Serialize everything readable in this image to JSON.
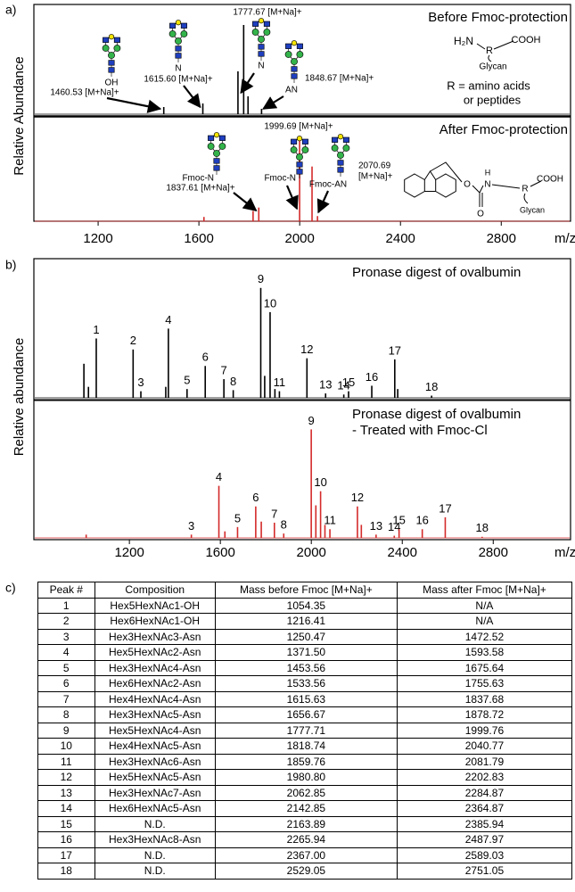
{
  "panel_a": {
    "label": "a)",
    "y_label": "Relative Abundance",
    "x_label": "m/z",
    "xlim": [
      945,
      3075
    ],
    "xticks": [
      1200,
      1600,
      2000,
      2400,
      2800
    ],
    "spectra": [
      {
        "title_lines": [
          "Before Fmoc-protection"
        ],
        "color": "#000000",
        "ylim": [
          0,
          120
        ],
        "peaks": {
          "x": [
            1460.53,
            1615.6,
            1755,
            1777.67,
            1795,
            1848.67
          ],
          "y": [
            8,
            12,
            48,
            100,
            20,
            6
          ]
        },
        "annotations": [
          {
            "label_lines": [
              "1460.53 [M+Na]+"
            ],
            "linker": "OH",
            "x": 1460.53
          },
          {
            "label_lines": [
              "1615.60 [M+Na]+"
            ],
            "linker": "N",
            "x": 1615.6
          },
          {
            "label_lines": [
              "1777.67 [M+Na]+"
            ],
            "linker": "N",
            "x": 1777.67
          },
          {
            "label_lines": [
              "1848.67 [M+Na]+"
            ],
            "linker": "AN",
            "x": 1848.67
          }
        ]
      },
      {
        "title_lines": [
          "After Fmoc-protection"
        ],
        "color": "#d42a2a",
        "ylim": [
          0,
          120
        ],
        "peaks": {
          "x": [
            1620,
            1815,
            1837.61,
            1999.69,
            2049,
            2070.69
          ],
          "y": [
            5,
            12,
            16,
            100,
            64,
            6
          ]
        },
        "annotations": [
          {
            "label_lines": [
              "1837.61 [M+Na]+"
            ],
            "linker": "Fmoc-N",
            "x": 1837.61
          },
          {
            "label_lines": [
              "1999.69 [M+Na]+"
            ],
            "linker": "Fmoc-N",
            "x": 1999.69
          },
          {
            "label_lines": [
              "2070.69",
              "[M+Na]+"
            ],
            "linker": "Fmoc-AN",
            "x": 2070.69
          }
        ]
      }
    ],
    "structure_before": [
      "H₂N",
      "R",
      "COOH",
      "Glycan"
    ],
    "r_note": [
      "R = amino acids",
      "or peptides"
    ],
    "structure_after": [
      "O",
      "H",
      "N",
      "O",
      "R",
      "COOH",
      "Glycan"
    ]
  },
  "panel_b": {
    "label": "b)",
    "y_label": "Relative abundance",
    "x_label": "m/z",
    "xlim": [
      780,
      3140
    ],
    "xticks": [
      1200,
      1600,
      2000,
      2400,
      2800
    ],
    "spectra": [
      {
        "title_lines": [
          "Pronase digest of ovalbumin"
        ],
        "color": "#000000",
        "ylim": [
          0,
          125
        ],
        "peaks": {
          "labels": [
            "1",
            "2",
            "3",
            "4",
            "5",
            "6",
            "7",
            "8",
            "9",
            "10",
            "11",
            "12",
            "13",
            "14",
            "15",
            "16",
            "17",
            "18"
          ],
          "x": [
            1054.35,
            1216.41,
            1250.47,
            1371.5,
            1453.56,
            1533.56,
            1615.63,
            1656.67,
            1777.71,
            1818.74,
            1859.76,
            1980.8,
            2062.85,
            2142.85,
            2163.89,
            2265.94,
            2367,
            2529.05
          ],
          "y": [
            54,
            44,
            6,
            63,
            8,
            29,
            17,
            7,
            100,
            78,
            6,
            36,
            4,
            3,
            6,
            11,
            35,
            2
          ]
        },
        "minor_peaks": {
          "x": [
            1000,
            1020,
            1360,
            1795,
            1840,
            2380
          ],
          "y": [
            31,
            10,
            10,
            20,
            8,
            8
          ]
        }
      },
      {
        "title_lines": [
          "Pronase digest of ovalbumin",
          "- Treated with Fmoc-Cl"
        ],
        "color": "#d42a2a",
        "ylim": [
          0,
          125
        ],
        "peaks": {
          "labels": [
            "3",
            "4",
            "5",
            "6",
            "7",
            "8",
            "9",
            "10",
            "11",
            "12",
            "13",
            "14",
            "15",
            "16",
            "17",
            "18"
          ],
          "x": [
            1472.52,
            1593.58,
            1675.64,
            1755.63,
            1837.68,
            1878.72,
            1999.76,
            2040.77,
            2081.79,
            2202.83,
            2284.87,
            2364.87,
            2385.94,
            2487.97,
            2589.03,
            2751.05
          ],
          "y": [
            3,
            48,
            10,
            29,
            14,
            4,
            100,
            43,
            8,
            29,
            3,
            2,
            8,
            8,
            19,
            1
          ]
        },
        "minor_peaks": {
          "x": [
            1010,
            1620,
            1780,
            2020,
            2060,
            2220
          ],
          "y": [
            3,
            6,
            15,
            30,
            12,
            12
          ]
        }
      }
    ]
  },
  "table": {
    "label": "c)",
    "header": [
      "Peak #",
      "Composition",
      "Mass before Fmoc [M+Na]+",
      "Mass after Fmoc [M+Na]+"
    ],
    "rows": [
      [
        "1",
        "Hex5HexNAc1-OH",
        "1054.35",
        "N/A"
      ],
      [
        "2",
        "Hex6HexNAc1-OH",
        "1216.41",
        "N/A"
      ],
      [
        "3",
        "Hex3HexNAc3-Asn",
        "1250.47",
        "1472.52"
      ],
      [
        "4",
        "Hex5HexNAc2-Asn",
        "1371.50",
        "1593.58"
      ],
      [
        "5",
        "Hex3HexNAc4-Asn",
        "1453.56",
        "1675.64"
      ],
      [
        "6",
        "Hex6HexNAc2-Asn",
        "1533.56",
        "1755.63"
      ],
      [
        "7",
        "Hex4HexNAc4-Asn",
        "1615.63",
        "1837.68"
      ],
      [
        "8",
        "Hex3HexNAc5-Asn",
        "1656.67",
        "1878.72"
      ],
      [
        "9",
        "Hex5HexNAc4-Asn",
        "1777.71",
        "1999.76"
      ],
      [
        "10",
        "Hex4HexNAc5-Asn",
        "1818.74",
        "2040.77"
      ],
      [
        "11",
        "Hex3HexNAc6-Asn",
        "1859.76",
        "2081.79"
      ],
      [
        "12",
        "Hex5HexNAc5-Asn",
        "1980.80",
        "2202.83"
      ],
      [
        "13",
        "Hex3HexNAc7-Asn",
        "2062.85",
        "2284.87"
      ],
      [
        "14",
        "Hex6HexNAc5-Asn",
        "2142.85",
        "2364.87"
      ],
      [
        "15",
        "N.D.",
        "2163.89",
        "2385.94"
      ],
      [
        "16",
        "Hex3HexNAc8-Asn",
        "2265.94",
        "2487.97"
      ],
      [
        "17",
        "N.D.",
        "2367.00",
        "2589.03"
      ],
      [
        "18",
        "N.D.",
        "2529.05",
        "2751.05"
      ]
    ]
  }
}
